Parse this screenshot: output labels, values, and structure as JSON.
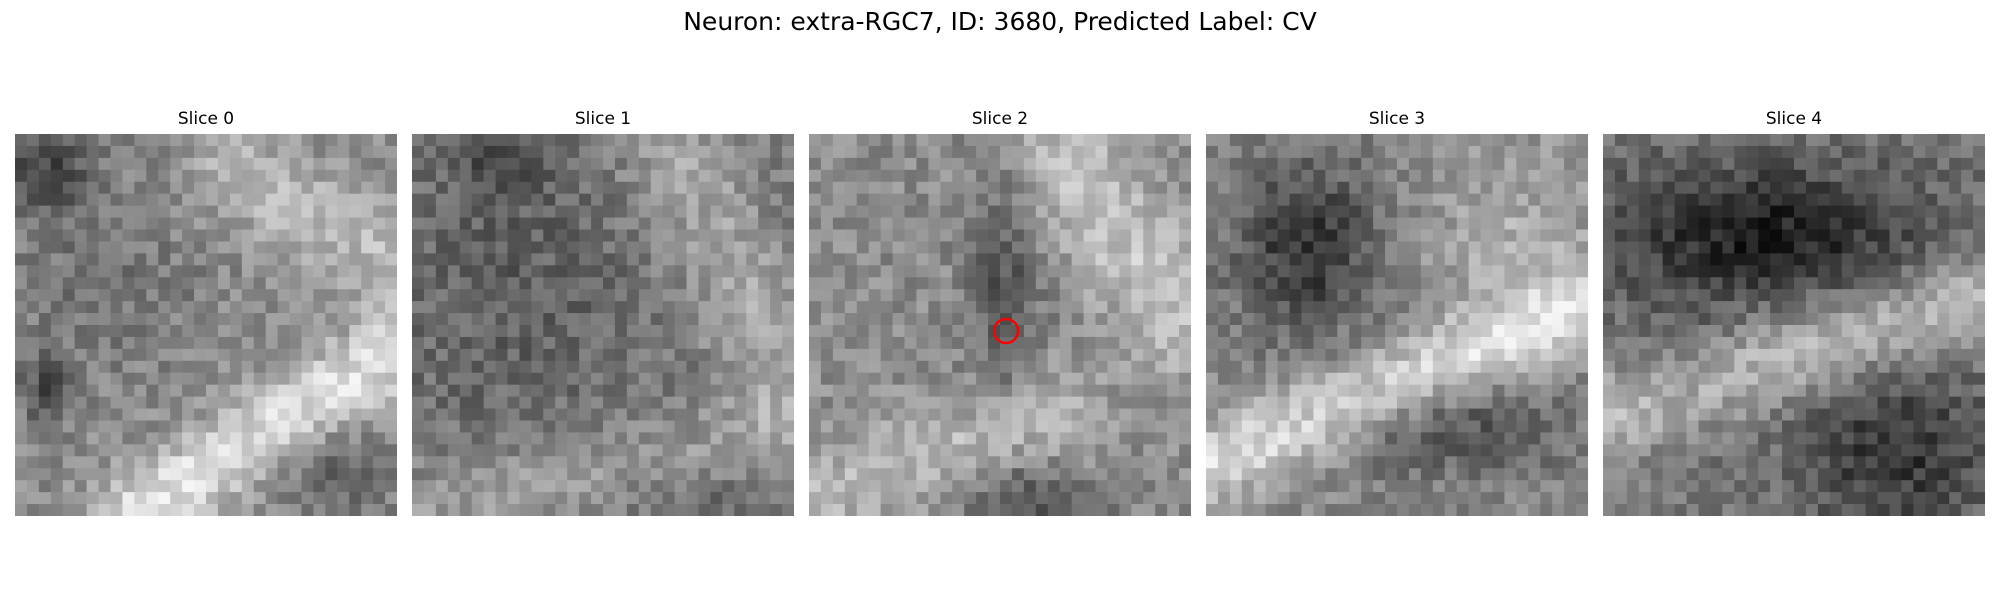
{
  "figure": {
    "title": "Neuron: extra-RGC7, ID: 3680, Predicted Label: CV"
  },
  "panels": [
    {
      "label": "Slice 0",
      "image": "grayscale-em-patch"
    },
    {
      "label": "Slice 1",
      "image": "grayscale-em-patch"
    },
    {
      "label": "Slice 2",
      "image": "grayscale-em-patch",
      "marker": "red-circle"
    },
    {
      "label": "Slice 3",
      "image": "grayscale-em-patch"
    },
    {
      "label": "Slice 4",
      "image": "grayscale-em-patch"
    }
  ],
  "colors": {
    "marker": "#ff0000",
    "background": "#ffffff"
  }
}
